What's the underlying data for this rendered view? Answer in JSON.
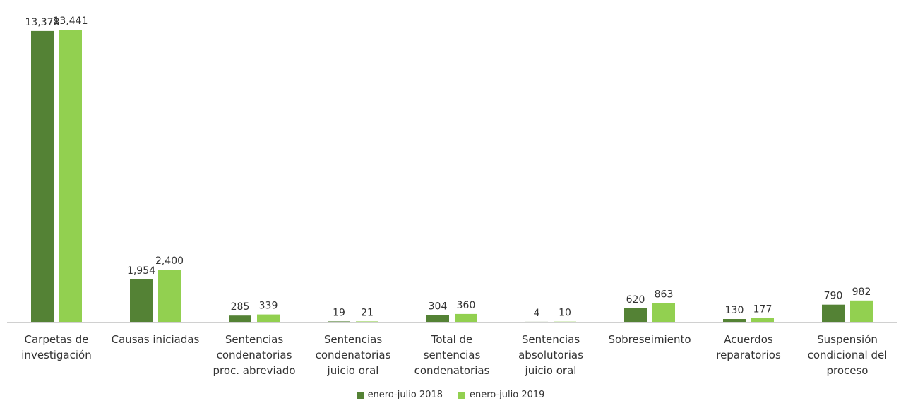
{
  "chart_data": {
    "type": "bar",
    "categories": [
      [
        "Carpetas de",
        "investigación"
      ],
      [
        "Causas iniciadas"
      ],
      [
        "Sentencias",
        "condenatorias",
        "proc. abreviado"
      ],
      [
        "Sentencias",
        "condenatorias",
        "juicio oral"
      ],
      [
        "Total de",
        "sentencias",
        "condenatorias"
      ],
      [
        "Sentencias",
        "absolutorias",
        "juicio oral"
      ],
      [
        "Sobreseimiento"
      ],
      [
        "Acuerdos",
        "reparatorios"
      ],
      [
        "Suspensión",
        "condicional del",
        "proceso"
      ]
    ],
    "series": [
      {
        "name": "enero-julio 2018",
        "color": "#548235",
        "values": [
          13378,
          1954,
          285,
          19,
          304,
          4,
          620,
          130,
          790
        ],
        "labels": [
          "13,378",
          "1,954",
          "285",
          "19",
          "304",
          "4",
          "620",
          "130",
          "790"
        ]
      },
      {
        "name": "enero-julio 2019",
        "color": "#92D050",
        "values": [
          13441,
          2400,
          339,
          21,
          360,
          10,
          863,
          177,
          982
        ],
        "labels": [
          "13,441",
          "2,400",
          "339",
          "21",
          "360",
          "10",
          "863",
          "177",
          "982"
        ]
      }
    ],
    "ylim": [
      0,
      13441
    ],
    "grid": false,
    "legend_position": "bottom"
  }
}
